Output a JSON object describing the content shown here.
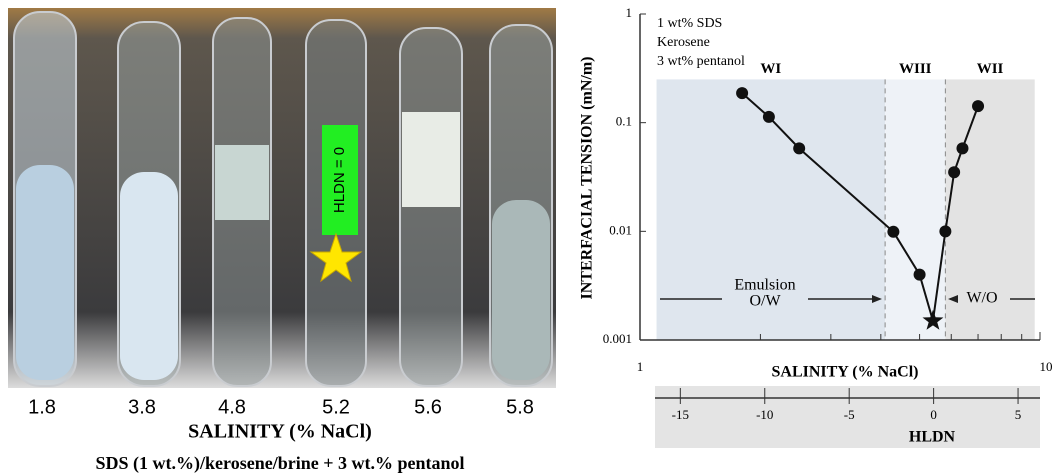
{
  "photo": {
    "tube_labels": [
      1.8,
      3.8,
      4.8,
      5.2,
      5.6,
      5.8
    ],
    "xlabel": "SALINITY (% NaCl)",
    "caption": "SDS (1 wt.%)/kerosene/brine + 3 wt.% pentanol",
    "annotation": "HLDN = 0"
  },
  "chart_data": {
    "type": "line",
    "annotations": [
      "1 wt% SDS",
      "Kerosene",
      "3 wt% pentanol"
    ],
    "arrow_labels": [
      "Emulsion",
      "O/W",
      "W/O"
    ],
    "xlabel": "SALINITY (% NaCl)",
    "ylabel": "INTERFACIAL TENSION (mN/m)",
    "xscale": "log",
    "yscale": "log",
    "xlim": [
      1,
      10
    ],
    "xticks": [
      1,
      10
    ],
    "xminor_ticks": [
      2,
      3,
      4,
      5,
      6,
      7,
      8,
      9
    ],
    "ylim": [
      0.001,
      1
    ],
    "yticks": [
      0.001,
      0.01,
      0.1,
      1
    ],
    "x": [
      1.8,
      2.1,
      2.5,
      4.3,
      5.0,
      5.4,
      5.8,
      6.1,
      6.4,
      7.0
    ],
    "series": [
      {
        "color": "#111111",
        "values": [
          0.187,
          0.113,
          0.058,
          0.0099,
          0.004,
          0.0015,
          0.01,
          0.035,
          0.058,
          0.142
        ],
        "markers": [
          "circle",
          "circle",
          "circle",
          "circle",
          "circle",
          "star",
          "circle",
          "circle",
          "circle",
          "circle"
        ]
      }
    ],
    "region_top": 0.25,
    "regions": [
      {
        "label": "WI",
        "from": 1.1,
        "to": 4.1,
        "color": "#dfe6ee"
      },
      {
        "label": "WIII",
        "from": 4.1,
        "to": 5.8,
        "color": "#eef2f7"
      },
      {
        "label": "WII",
        "from": 5.8,
        "to": 9.7,
        "color": "#e3e3e3"
      }
    ],
    "x2lim": [
      -16.5,
      6.3
    ],
    "x2ticks": [
      -15,
      -10,
      -5,
      0,
      5
    ],
    "x2label": "HLDN"
  }
}
